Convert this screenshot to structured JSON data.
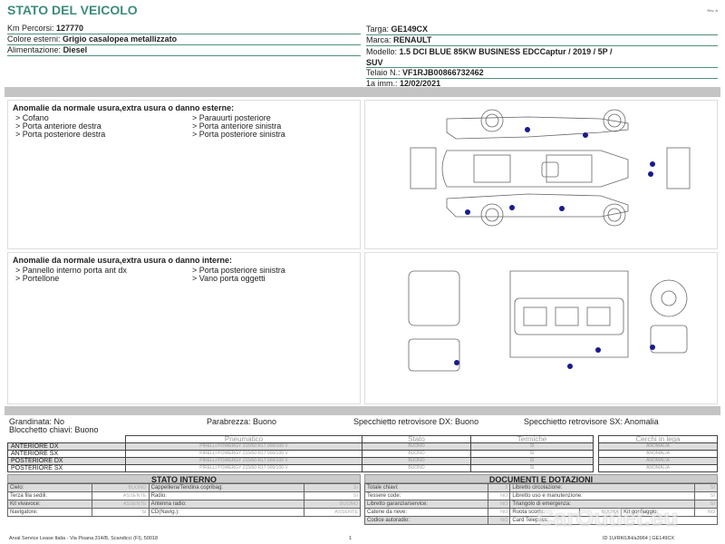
{
  "header": {
    "title": "STATO DEL VEICOLO",
    "rev": "Rev. A"
  },
  "vehicle_left": [
    {
      "label": "Km Percorsi:",
      "value": "127770"
    },
    {
      "label": "Colore esterni:",
      "value": "Grigio casalopea metallizzato"
    },
    {
      "label": "Alimentazione:",
      "value": "Diesel"
    }
  ],
  "vehicle_right": [
    {
      "label": "Targa:",
      "value": "GE149CX"
    },
    {
      "label": "Marca:",
      "value": "RENAULT"
    },
    {
      "label": "Modello:",
      "value": "1.5 DCI BLUE 85KW BUSINESS EDCCaptur / 2019 / 5P /",
      "value2": "SUV"
    },
    {
      "label": "Telaio N.:",
      "value": "VF1RJB00866732462"
    },
    {
      "label": "1a imm.:",
      "value": "12/02/2021"
    }
  ],
  "exterior": {
    "heading": "Anomalie da normale usura,extra usura o danno esterne:",
    "items": [
      "> Cofano",
      "> Parauurti posteriore",
      "> Porta anteriore destra",
      "> Porta anteriore sinistra",
      "> Porta posteriore destra",
      "> Porta posteriore sinistra"
    ],
    "marker_color": "#1a1a8c"
  },
  "interior": {
    "heading": "Anomalie da normale usura,extra usura o danno interne:",
    "items": [
      "> Pannello interno porta ant dx",
      "> Porta posteriore sinistra",
      "> Portellone",
      "> Vano porta oggetti"
    ]
  },
  "checks": {
    "grandinata": "Grandinata: No",
    "parabrezza": "Parabrezza: Buono",
    "spec_dx": "Specchietto retrovisore DX: Buono",
    "spec_sx": "Specchietto retrovisore SX: Anomalia",
    "blocchetto": "Blocchetto chiavi: Buono"
  },
  "tyres": {
    "headers": [
      "Pneumatico",
      "Stato",
      "Termiche",
      "Cerchi in lega"
    ],
    "rows": [
      {
        "pos": "ANTERIORE DX",
        "tyre": "PIRELLI POWERGY 215/60 R17 000/100 V",
        "stato": "BUONO",
        "termiche": "SI",
        "cerchi": "ANOMALIA"
      },
      {
        "pos": "ANTERIORE SX",
        "tyre": "PIRELLI POWERGY 215/60 R17 000/100 V",
        "stato": "BUONO",
        "termiche": "SI",
        "cerchi": "ANOMALIA"
      },
      {
        "pos": "POSTERIORE DX",
        "tyre": "PIRELLI POWERGY 215/60 R17 000/100 V",
        "stato": "BUONO",
        "termiche": "SI",
        "cerchi": "ANOMALIA"
      },
      {
        "pos": "POSTERIORE SX",
        "tyre": "PIRELLI POWERGY 215/60 R17 000/100 V",
        "stato": "BUONO",
        "termiche": "SI",
        "cerchi": "ANOMALIA"
      }
    ]
  },
  "stato_interno": {
    "title": "STATO INTERNO",
    "rows": [
      [
        "Cielo:",
        "BUONO",
        "Cappelliera/Tendina copribag:",
        "SI"
      ],
      [
        "Terza fila sedili:",
        "ASSENTE",
        "Radio:",
        "SI"
      ],
      [
        "Kit vivavoce:",
        "ASSENTE",
        "Antenna radio:",
        "BUONO"
      ],
      [
        "Navigatore:",
        "SI",
        "CD(Navig.):",
        "ASSENTE"
      ]
    ]
  },
  "documenti": {
    "title": "DOCUMENTI E DOTAZIONI",
    "rows": [
      [
        "Totale chiavi:",
        "2",
        "Libretto circolazione:",
        "SI"
      ],
      [
        "Tessere code:",
        "NO",
        "Libretto uso e manutenzione:",
        "SI"
      ],
      [
        "Libretto garanzia/service:",
        "NO",
        "Triangolo di emergenza:",
        "SI"
      ],
      [
        "Catene da neve:",
        "NO",
        "Ruota scorta:",
        "BUONA",
        "Kit gonfiaggio:",
        "NO"
      ],
      [
        "Codice autoradio:",
        "NO",
        "Card Telepass:",
        ""
      ]
    ]
  },
  "footer": {
    "address": "Arval Service Lease Italia - Via Pisana 314/B, Scandicci (FI), 50018",
    "page": "1",
    "doc_id": "ID 1U/RK0JH/a3964 | GE149CX"
  },
  "watermark": "CarOutlet.eu"
}
